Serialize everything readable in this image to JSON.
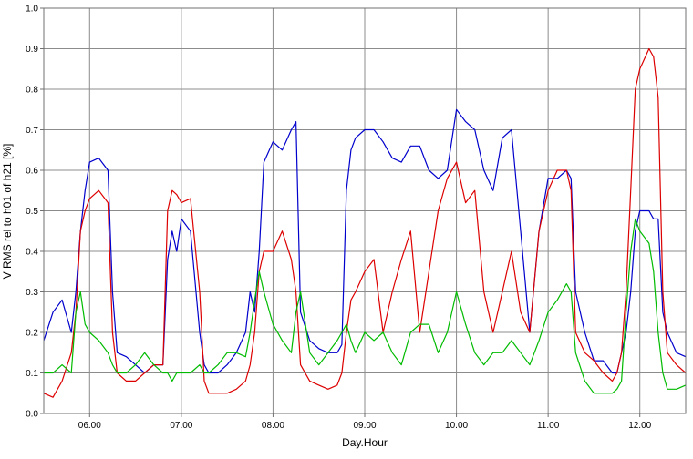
{
  "chart_data": {
    "type": "line",
    "xlabel": "Day.Hour",
    "ylabel": "V RMS rel to h01 of h21 [%]",
    "xlim": [
      5.5,
      12.5
    ],
    "ylim": [
      0.0,
      1.0
    ],
    "grid": true,
    "x_ticks": [
      6,
      7,
      8,
      9,
      10,
      11,
      12
    ],
    "x_tick_labels": [
      "06.00",
      "07.00",
      "08.00",
      "09.00",
      "10.00",
      "11.00",
      "12.00"
    ],
    "y_ticks": [
      0.0,
      0.1,
      0.2,
      0.3,
      0.4,
      0.5,
      0.6,
      0.7,
      0.8,
      0.9,
      1.0
    ],
    "y_tick_labels": [
      "0.0",
      "0.1",
      "0.2",
      "0.3",
      "0.4",
      "0.5",
      "0.6",
      "0.7",
      "0.8",
      "0.9",
      "1.0"
    ],
    "series": [
      {
        "color": "#0000cc",
        "x": [
          5.5,
          5.6,
          5.7,
          5.8,
          5.85,
          5.9,
          5.95,
          6.0,
          6.1,
          6.2,
          6.25,
          6.3,
          6.4,
          6.5,
          6.6,
          6.7,
          6.8,
          6.85,
          6.9,
          6.95,
          7.0,
          7.1,
          7.2,
          7.25,
          7.3,
          7.4,
          7.5,
          7.6,
          7.7,
          7.75,
          7.8,
          7.85,
          7.9,
          8.0,
          8.1,
          8.2,
          8.25,
          8.3,
          8.4,
          8.5,
          8.6,
          8.7,
          8.75,
          8.8,
          8.85,
          8.9,
          9.0,
          9.1,
          9.2,
          9.3,
          9.4,
          9.5,
          9.6,
          9.7,
          9.8,
          9.9,
          10.0,
          10.1,
          10.2,
          10.3,
          10.4,
          10.5,
          10.6,
          10.7,
          10.8,
          10.9,
          11.0,
          11.1,
          11.2,
          11.25,
          11.3,
          11.4,
          11.5,
          11.6,
          11.7,
          11.75,
          11.8,
          11.85,
          11.9,
          11.95,
          12.0,
          12.1,
          12.15,
          12.2,
          12.25,
          12.3,
          12.4,
          12.5
        ],
        "y": [
          0.18,
          0.25,
          0.28,
          0.2,
          0.3,
          0.45,
          0.55,
          0.62,
          0.63,
          0.6,
          0.3,
          0.15,
          0.14,
          0.12,
          0.1,
          0.12,
          0.12,
          0.38,
          0.45,
          0.4,
          0.48,
          0.45,
          0.2,
          0.12,
          0.1,
          0.1,
          0.12,
          0.15,
          0.2,
          0.3,
          0.25,
          0.4,
          0.62,
          0.67,
          0.65,
          0.7,
          0.72,
          0.25,
          0.18,
          0.16,
          0.15,
          0.15,
          0.17,
          0.55,
          0.65,
          0.68,
          0.7,
          0.7,
          0.67,
          0.63,
          0.62,
          0.66,
          0.66,
          0.6,
          0.58,
          0.6,
          0.75,
          0.72,
          0.7,
          0.6,
          0.55,
          0.68,
          0.7,
          0.45,
          0.2,
          0.45,
          0.58,
          0.58,
          0.6,
          0.58,
          0.3,
          0.2,
          0.13,
          0.13,
          0.1,
          0.1,
          0.15,
          0.2,
          0.3,
          0.45,
          0.5,
          0.5,
          0.48,
          0.48,
          0.25,
          0.2,
          0.15,
          0.14
        ]
      },
      {
        "color": "#dd0000",
        "x": [
          5.5,
          5.6,
          5.7,
          5.8,
          5.85,
          5.9,
          5.95,
          6.0,
          6.1,
          6.2,
          6.25,
          6.3,
          6.4,
          6.5,
          6.6,
          6.7,
          6.8,
          6.85,
          6.9,
          6.95,
          7.0,
          7.1,
          7.2,
          7.25,
          7.3,
          7.4,
          7.5,
          7.6,
          7.7,
          7.75,
          7.8,
          7.85,
          7.9,
          8.0,
          8.1,
          8.2,
          8.25,
          8.3,
          8.4,
          8.5,
          8.6,
          8.7,
          8.75,
          8.8,
          8.85,
          8.9,
          9.0,
          9.1,
          9.2,
          9.3,
          9.4,
          9.5,
          9.6,
          9.7,
          9.8,
          9.9,
          10.0,
          10.1,
          10.2,
          10.3,
          10.4,
          10.5,
          10.6,
          10.7,
          10.8,
          10.9,
          11.0,
          11.1,
          11.2,
          11.25,
          11.3,
          11.4,
          11.5,
          11.6,
          11.7,
          11.75,
          11.8,
          11.85,
          11.9,
          11.95,
          12.0,
          12.1,
          12.15,
          12.2,
          12.25,
          12.3,
          12.4,
          12.5
        ],
        "y": [
          0.05,
          0.04,
          0.08,
          0.15,
          0.25,
          0.45,
          0.5,
          0.53,
          0.55,
          0.52,
          0.2,
          0.1,
          0.08,
          0.08,
          0.1,
          0.12,
          0.12,
          0.5,
          0.55,
          0.54,
          0.52,
          0.53,
          0.3,
          0.08,
          0.05,
          0.05,
          0.05,
          0.06,
          0.08,
          0.12,
          0.2,
          0.35,
          0.4,
          0.4,
          0.45,
          0.38,
          0.3,
          0.12,
          0.08,
          0.07,
          0.06,
          0.07,
          0.1,
          0.2,
          0.28,
          0.3,
          0.35,
          0.38,
          0.2,
          0.3,
          0.38,
          0.45,
          0.2,
          0.35,
          0.5,
          0.58,
          0.62,
          0.52,
          0.55,
          0.3,
          0.2,
          0.3,
          0.4,
          0.25,
          0.2,
          0.45,
          0.55,
          0.6,
          0.6,
          0.55,
          0.2,
          0.15,
          0.13,
          0.1,
          0.08,
          0.1,
          0.15,
          0.3,
          0.55,
          0.8,
          0.85,
          0.9,
          0.88,
          0.78,
          0.3,
          0.15,
          0.12,
          0.1
        ]
      },
      {
        "color": "#00bb00",
        "x": [
          5.5,
          5.6,
          5.7,
          5.8,
          5.85,
          5.9,
          5.95,
          6.0,
          6.1,
          6.2,
          6.25,
          6.3,
          6.4,
          6.5,
          6.6,
          6.7,
          6.8,
          6.85,
          6.9,
          6.95,
          7.0,
          7.1,
          7.2,
          7.25,
          7.3,
          7.4,
          7.5,
          7.6,
          7.7,
          7.75,
          7.8,
          7.85,
          7.9,
          8.0,
          8.1,
          8.2,
          8.25,
          8.3,
          8.4,
          8.5,
          8.6,
          8.7,
          8.75,
          8.8,
          8.85,
          8.9,
          9.0,
          9.1,
          9.2,
          9.3,
          9.4,
          9.5,
          9.6,
          9.7,
          9.8,
          9.9,
          10.0,
          10.1,
          10.2,
          10.3,
          10.4,
          10.5,
          10.6,
          10.7,
          10.8,
          10.9,
          11.0,
          11.1,
          11.2,
          11.25,
          11.3,
          11.4,
          11.5,
          11.6,
          11.7,
          11.75,
          11.8,
          11.85,
          11.9,
          11.95,
          12.0,
          12.1,
          12.15,
          12.2,
          12.25,
          12.3,
          12.4,
          12.5
        ],
        "y": [
          0.1,
          0.1,
          0.12,
          0.1,
          0.25,
          0.3,
          0.22,
          0.2,
          0.18,
          0.15,
          0.12,
          0.1,
          0.1,
          0.12,
          0.15,
          0.12,
          0.1,
          0.1,
          0.08,
          0.1,
          0.1,
          0.1,
          0.12,
          0.1,
          0.1,
          0.12,
          0.15,
          0.15,
          0.14,
          0.2,
          0.28,
          0.35,
          0.3,
          0.22,
          0.18,
          0.15,
          0.25,
          0.3,
          0.15,
          0.12,
          0.15,
          0.18,
          0.2,
          0.22,
          0.18,
          0.15,
          0.2,
          0.18,
          0.2,
          0.15,
          0.12,
          0.2,
          0.22,
          0.22,
          0.15,
          0.2,
          0.3,
          0.22,
          0.15,
          0.12,
          0.15,
          0.15,
          0.18,
          0.15,
          0.12,
          0.18,
          0.25,
          0.28,
          0.32,
          0.3,
          0.15,
          0.08,
          0.05,
          0.05,
          0.05,
          0.06,
          0.08,
          0.25,
          0.4,
          0.48,
          0.45,
          0.42,
          0.35,
          0.2,
          0.1,
          0.06,
          0.06,
          0.07
        ]
      }
    ]
  }
}
